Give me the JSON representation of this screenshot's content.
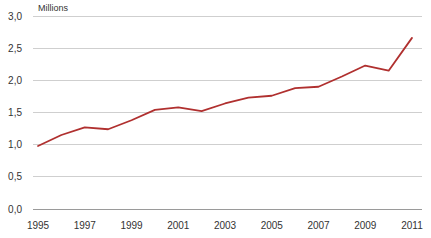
{
  "chart_data": {
    "type": "line",
    "y_label": "Millions",
    "x": [
      1995,
      1996,
      1997,
      1998,
      1999,
      2000,
      2001,
      2002,
      2003,
      2004,
      2005,
      2006,
      2007,
      2008,
      2009,
      2010,
      2011
    ],
    "values": [
      0.98,
      1.15,
      1.27,
      1.24,
      1.38,
      1.54,
      1.58,
      1.52,
      1.64,
      1.73,
      1.76,
      1.88,
      1.9,
      2.06,
      2.23,
      2.15,
      2.66
    ],
    "color": "#b0302f",
    "xlim": [
      1995,
      2011
    ],
    "xticks": [
      1995,
      1997,
      1999,
      2001,
      2003,
      2005,
      2007,
      2009,
      2011
    ],
    "ylim": [
      0,
      3
    ],
    "yticks": [
      {
        "value": 0,
        "label": "0,0"
      },
      {
        "value": 0.5,
        "label": "0,5"
      },
      {
        "value": 1,
        "label": "1,0"
      },
      {
        "value": 1.5,
        "label": "1,5"
      },
      {
        "value": 2,
        "label": "2,0"
      },
      {
        "value": 2.5,
        "label": "2,5"
      },
      {
        "value": 3,
        "label": "3,0"
      }
    ],
    "grid": true
  }
}
